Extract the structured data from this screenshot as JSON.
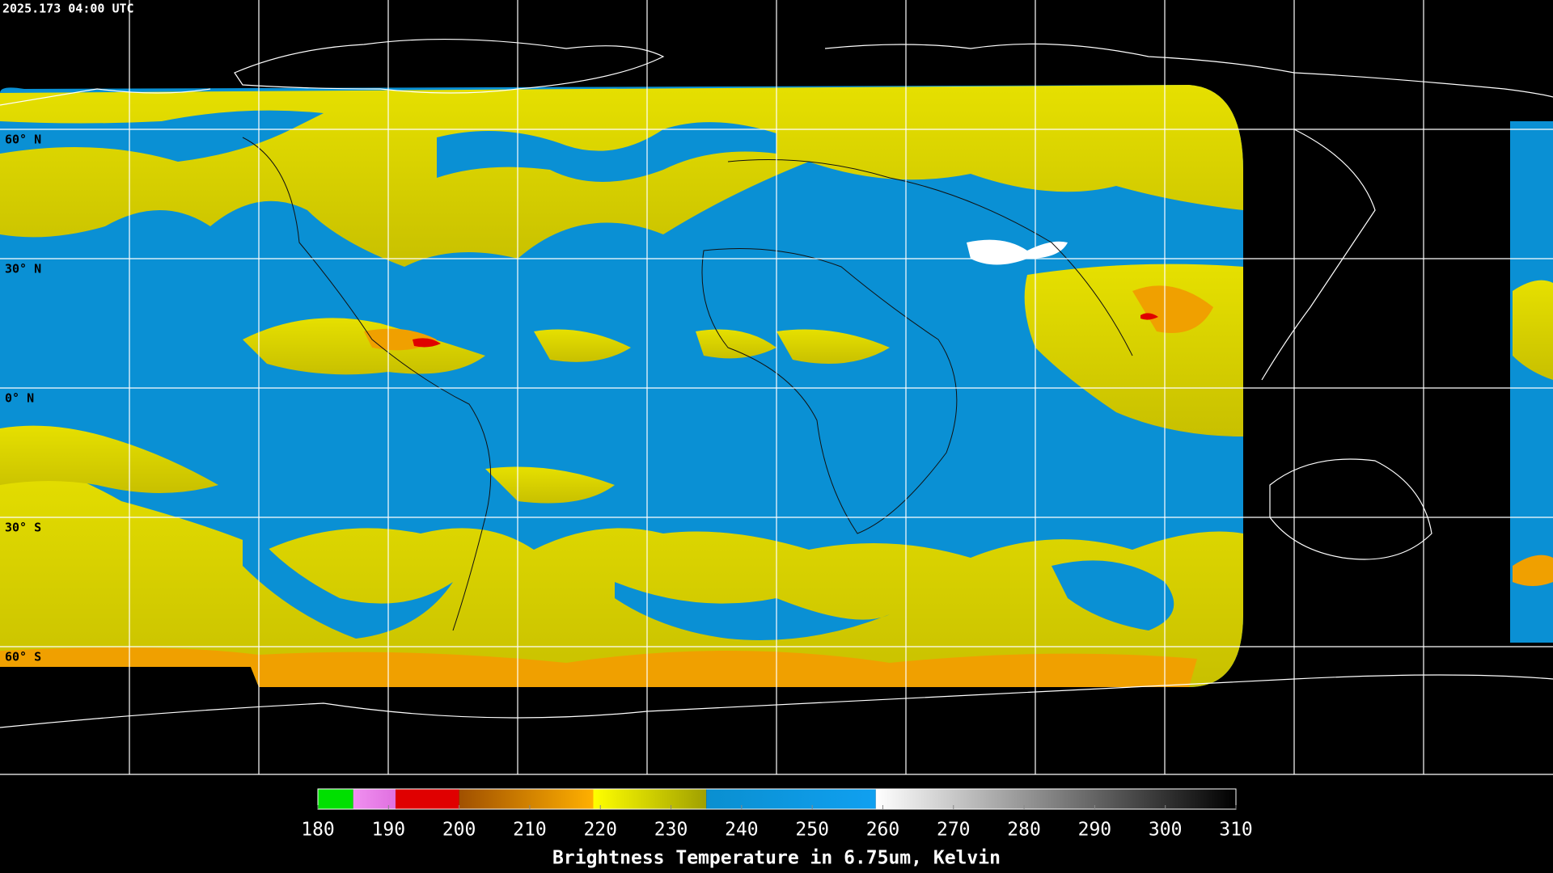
{
  "header": {
    "timestamp": "2025.173 04:00 UTC"
  },
  "map": {
    "latitude_labels": [
      "60° N",
      "30° N",
      "0° N",
      "30° S",
      "60° S"
    ]
  },
  "colorbar": {
    "title": "Brightness Temperature in 6.75um, Kelvin",
    "range": [
      180,
      310
    ],
    "ticks": [
      180,
      190,
      200,
      210,
      220,
      230,
      240,
      250,
      260,
      270,
      280,
      290,
      300,
      310
    ],
    "segments": [
      {
        "from": 180,
        "to": 185,
        "color": "#00e000",
        "color_end": "#00e000"
      },
      {
        "from": 185,
        "to": 191,
        "color": "#f090f0",
        "color_end": "#e070e0"
      },
      {
        "from": 191,
        "to": 200,
        "color": "#e00000",
        "color_end": "#e00000"
      },
      {
        "from": 200,
        "to": 219,
        "color": "#a05000",
        "color_end": "#ffb000"
      },
      {
        "from": 219,
        "to": 235,
        "color": "#ffff00",
        "color_end": "#a0a000"
      },
      {
        "from": 235,
        "to": 259,
        "color": "#0a8fd0",
        "color_end": "#10a0f0"
      },
      {
        "from": 259,
        "to": 310,
        "color": "#ffffff",
        "color_end": "#000000"
      }
    ]
  }
}
